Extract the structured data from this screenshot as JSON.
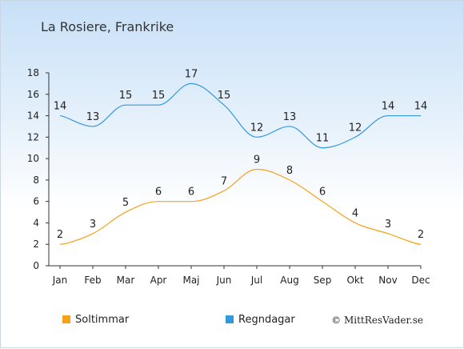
{
  "chart_data": {
    "type": "line",
    "title": "La Rosiere, Frankrike",
    "xlabel": "",
    "ylabel": "",
    "categories": [
      "Jan",
      "Feb",
      "Mar",
      "Apr",
      "Maj",
      "Jun",
      "Jul",
      "Aug",
      "Sep",
      "Okt",
      "Nov",
      "Dec"
    ],
    "ylim": [
      0,
      18
    ],
    "yticks": [
      "0",
      "2",
      "4",
      "6",
      "8",
      "10",
      "12",
      "14",
      "16",
      "18"
    ],
    "grid": false,
    "legend_position": "bottom-left",
    "series": [
      {
        "name": "Soltimmar",
        "color": "#f7a11a",
        "values": [
          2,
          3,
          5,
          6,
          6,
          7,
          9,
          8,
          6,
          4,
          3,
          2
        ]
      },
      {
        "name": "Regndagar",
        "color": "#3399dd",
        "values": [
          14,
          13,
          15,
          15,
          17,
          15,
          12,
          13,
          11,
          12,
          14,
          14
        ]
      }
    ]
  },
  "credit": "© MittResVader.se"
}
